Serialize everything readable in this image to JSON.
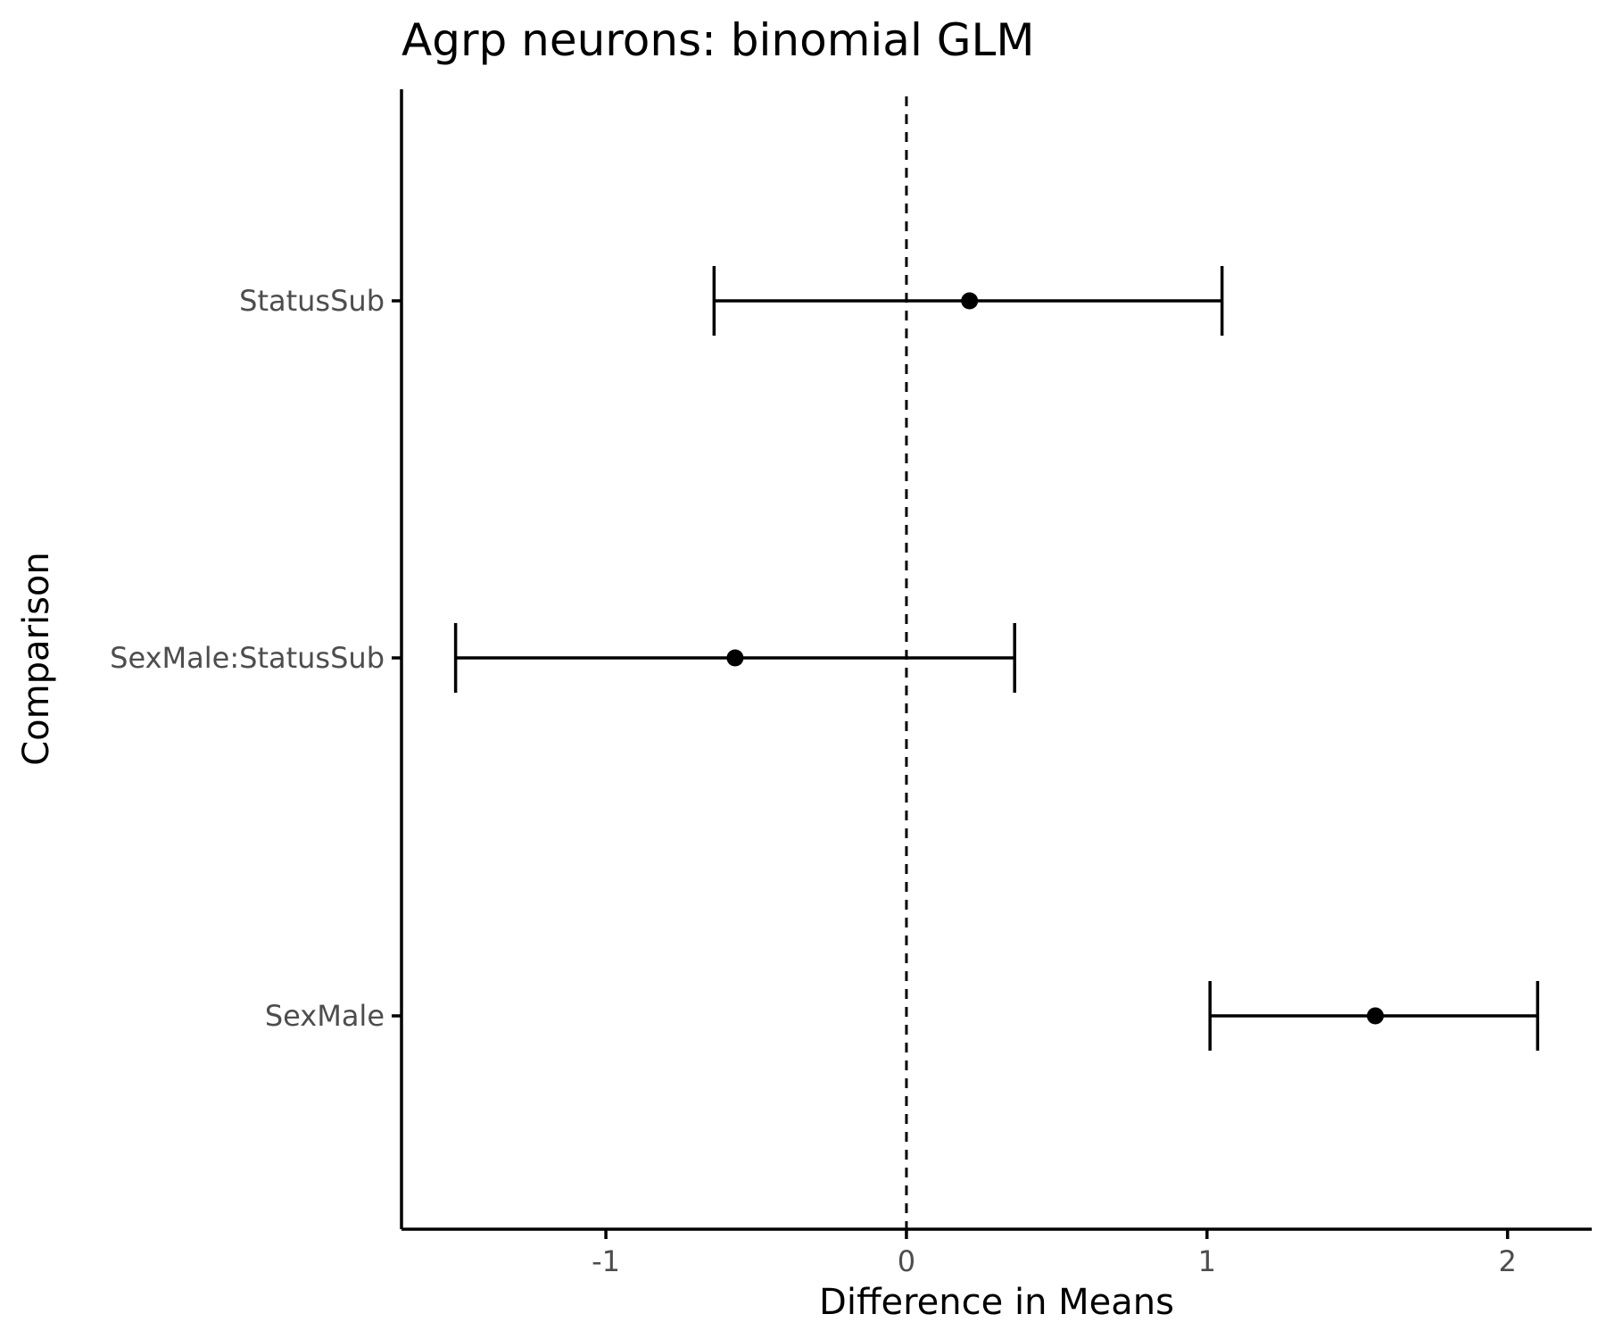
{
  "chart_data": {
    "type": "scatter",
    "title": "Agrp neurons: binomial GLM",
    "xlabel": "Difference in Means",
    "ylabel": "Comparison",
    "xlim": [
      -1.68,
      2.28
    ],
    "xticks": [
      "-1",
      "0",
      "1",
      "2"
    ],
    "categories": [
      "StatusSub",
      "SexMale:StatusSub",
      "SexMale"
    ],
    "points": [
      {
        "label": "StatusSub",
        "estimate": 0.21,
        "lower": -0.64,
        "upper": 1.05
      },
      {
        "label": "SexMale:StatusSub",
        "estimate": -0.57,
        "lower": -1.5,
        "upper": 0.36
      },
      {
        "label": "SexMale",
        "estimate": 1.56,
        "lower": 1.01,
        "upper": 2.1
      }
    ],
    "reference_line": 0,
    "grid": false,
    "colors": {
      "marks": "#000000",
      "tick_labels": "#4d4d4d"
    }
  }
}
